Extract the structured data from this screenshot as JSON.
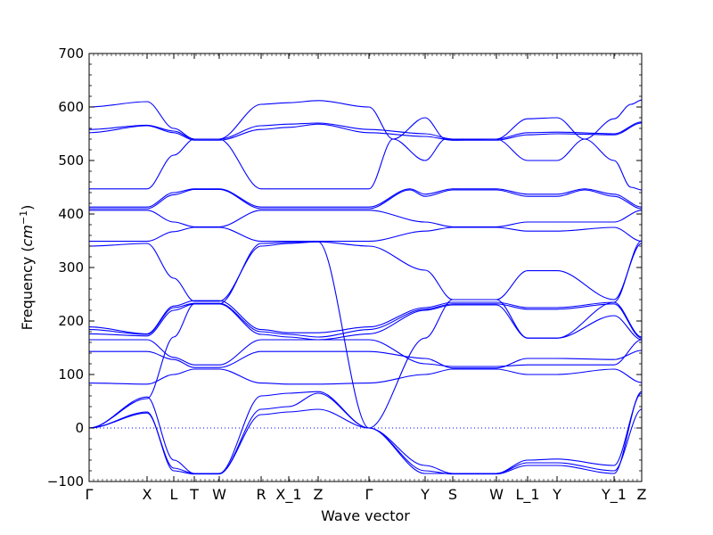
{
  "chart_data": {
    "type": "line",
    "title": "",
    "xlabel": "Wave vector",
    "ylabel": "Frequency (cm⁻¹)",
    "ylabel_main": "Frequency (",
    "ylabel_unit": "cm",
    "ylabel_exp": "−1",
    "ylabel_close": ")",
    "ylim": [
      -100,
      700
    ],
    "xlim": [
      0,
      620
    ],
    "grid": false,
    "legend": "none",
    "zero_line": {
      "y": 0,
      "style": "dotted",
      "color": "#0000ff"
    },
    "yticks": [
      -100,
      0,
      100,
      200,
      300,
      400,
      500,
      600,
      700
    ],
    "ytick_labels": [
      "−100",
      "0",
      "100",
      "200",
      "300",
      "400",
      "500",
      "600",
      "700"
    ],
    "xticks": [
      {
        "label": "Γ",
        "x": 0
      },
      {
        "label": "X",
        "x": 65
      },
      {
        "label": "L",
        "x": 95
      },
      {
        "label": "T",
        "x": 118
      },
      {
        "label": "W",
        "x": 146
      },
      {
        "label": "R",
        "x": 193
      },
      {
        "label": "X_1",
        "x": 224
      },
      {
        "label": "Z",
        "x": 257
      },
      {
        "label": "Γ",
        "x": 314
      },
      {
        "label": "Y",
        "x": 377
      },
      {
        "label": "S",
        "x": 408
      },
      {
        "label": "W",
        "x": 457
      },
      {
        "label": "L_1",
        "x": 492
      },
      {
        "label": "Y",
        "x": 525
      },
      {
        "label": "Y_1",
        "x": 589
      },
      {
        "label": "Z",
        "x": 620
      }
    ],
    "line_color": "#0000ff",
    "series": [
      {
        "x": [
          0,
          65,
          95,
          118,
          146,
          193,
          224,
          257,
          314,
          341,
          377,
          400,
          408,
          457,
          492,
          525,
          556,
          589,
          608,
          620
        ],
        "y": [
          600,
          610,
          560,
          540,
          540,
          605,
          608,
          612,
          600,
          540,
          500,
          540,
          540,
          540,
          500,
          500,
          540,
          500,
          450,
          445
        ]
      },
      {
        "x": [
          0,
          65,
          95,
          118,
          146,
          193,
          224,
          257,
          314,
          377,
          408,
          457,
          492,
          525,
          589,
          620
        ],
        "y": [
          558,
          566,
          555,
          540,
          540,
          565,
          568,
          570,
          558,
          550,
          540,
          540,
          552,
          553,
          550,
          572
        ]
      },
      {
        "x": [
          0,
          65,
          95,
          118,
          146,
          193,
          224,
          257,
          314,
          377,
          408,
          457,
          492,
          525,
          589,
          620
        ],
        "y": [
          552,
          565,
          552,
          538,
          538,
          558,
          562,
          568,
          552,
          545,
          538,
          538,
          548,
          550,
          548,
          570
        ]
      },
      {
        "x": [
          0,
          65,
          95,
          118,
          146,
          193,
          224,
          257,
          314,
          341,
          377,
          400,
          408,
          457,
          492,
          525,
          556,
          589,
          608,
          620
        ],
        "y": [
          447,
          447,
          510,
          540,
          540,
          447,
          447,
          447,
          447,
          540,
          580,
          540,
          538,
          540,
          578,
          580,
          540,
          578,
          605,
          613
        ]
      },
      {
        "x": [
          0,
          65,
          95,
          118,
          146,
          193,
          224,
          257,
          314,
          360,
          377,
          408,
          457,
          492,
          525,
          556,
          589,
          620
        ],
        "y": [
          413,
          413,
          440,
          447,
          447,
          413,
          413,
          413,
          413,
          447,
          437,
          447,
          447,
          437,
          437,
          447,
          437,
          413
        ]
      },
      {
        "x": [
          0,
          65,
          95,
          118,
          146,
          193,
          224,
          257,
          314,
          360,
          377,
          408,
          457,
          492,
          525,
          556,
          589,
          620
        ],
        "y": [
          410,
          410,
          436,
          446,
          446,
          410,
          410,
          410,
          410,
          445,
          433,
          445,
          445,
          433,
          433,
          445,
          433,
          410
        ]
      },
      {
        "x": [
          0,
          65,
          95,
          118,
          146,
          193,
          224,
          257,
          314,
          377,
          408,
          457,
          492,
          525,
          589,
          620
        ],
        "y": [
          407,
          407,
          385,
          376,
          376,
          407,
          407,
          407,
          407,
          385,
          376,
          376,
          385,
          385,
          385,
          407
        ]
      },
      {
        "x": [
          0,
          65,
          95,
          118,
          146,
          193,
          224,
          257,
          314,
          377,
          408,
          457,
          492,
          525,
          589,
          620
        ],
        "y": [
          349,
          349,
          367,
          375,
          375,
          349,
          349,
          349,
          349,
          368,
          375,
          375,
          368,
          368,
          375,
          349
        ]
      },
      {
        "x": [
          0,
          65,
          95,
          118,
          146,
          193,
          224,
          257,
          314,
          377,
          408,
          457,
          492,
          525,
          589,
          620
        ],
        "y": [
          340,
          345,
          280,
          237,
          237,
          340,
          345,
          348,
          340,
          295,
          240,
          240,
          294,
          294,
          240,
          345
        ]
      },
      {
        "x": [
          0,
          65,
          95,
          118,
          146,
          193,
          224,
          257,
          314,
          377,
          408,
          457,
          492,
          525,
          589,
          620
        ],
        "y": [
          189,
          176,
          228,
          238,
          238,
          184,
          178,
          178,
          189,
          225,
          235,
          235,
          225,
          225,
          235,
          170
        ]
      },
      {
        "x": [
          0,
          65,
          95,
          118,
          146,
          193,
          224,
          257,
          314,
          377,
          408,
          457,
          492,
          525,
          589,
          620
        ],
        "y": [
          184,
          175,
          225,
          233,
          233,
          180,
          175,
          170,
          184,
          222,
          232,
          232,
          222,
          222,
          232,
          168
        ]
      },
      {
        "x": [
          0,
          65,
          95,
          118,
          146,
          193,
          224,
          257,
          314,
          377,
          408,
          457,
          492,
          525,
          589,
          620
        ],
        "y": [
          176,
          172,
          220,
          232,
          232,
          175,
          170,
          165,
          176,
          220,
          230,
          230,
          168,
          168,
          210,
          165
        ]
      },
      {
        "x": [
          0,
          65,
          95,
          118,
          146,
          193,
          224,
          257,
          314,
          377,
          408,
          457,
          492,
          525,
          589,
          620
        ],
        "y": [
          165,
          165,
          132,
          118,
          118,
          165,
          165,
          165,
          165,
          120,
          115,
          115,
          118,
          118,
          118,
          165
        ]
      },
      {
        "x": [
          0,
          65,
          95,
          118,
          146,
          193,
          224,
          257,
          314,
          377,
          408,
          457,
          492,
          525,
          589,
          620
        ],
        "y": [
          143,
          143,
          128,
          113,
          113,
          143,
          143,
          143,
          143,
          130,
          112,
          112,
          130,
          130,
          128,
          145
        ]
      },
      {
        "x": [
          0,
          65,
          95,
          118,
          146,
          193,
          224,
          257,
          314,
          377,
          408,
          457,
          492,
          525,
          589,
          620
        ],
        "y": [
          84,
          82,
          100,
          110,
          110,
          84,
          82,
          82,
          84,
          100,
          110,
          110,
          100,
          100,
          110,
          85
        ]
      },
      {
        "x": [
          0,
          65,
          95,
          118,
          146,
          193,
          224,
          257,
          314,
          377,
          408,
          457,
          492,
          525,
          589,
          620
        ],
        "y": [
          0,
          58,
          -60,
          -85,
          -85,
          60,
          65,
          68,
          0,
          -70,
          -85,
          -85,
          -60,
          -58,
          -70,
          65
        ]
      },
      {
        "x": [
          0,
          65,
          95,
          118,
          146,
          193,
          224,
          257,
          314,
          377,
          408,
          457,
          492,
          525,
          589,
          620
        ],
        "y": [
          0,
          28,
          -75,
          -85,
          -85,
          25,
          30,
          35,
          0,
          -85,
          -85,
          -85,
          -65,
          -65,
          -80,
          35
        ]
      },
      {
        "x": [
          0,
          65,
          95,
          118,
          146,
          193,
          224,
          257,
          314,
          377,
          408,
          457,
          492,
          525,
          589,
          620
        ],
        "y": [
          0,
          30,
          -80,
          -86,
          -86,
          35,
          40,
          65,
          0,
          -80,
          -86,
          -86,
          -70,
          -70,
          -85,
          68
        ]
      },
      {
        "x": [
          0,
          65,
          95,
          118,
          146,
          193,
          224,
          257,
          314,
          377,
          408,
          457,
          492,
          525,
          589,
          620
        ],
        "y": [
          0,
          55,
          170,
          232,
          232,
          345,
          347,
          348,
          0,
          168,
          240,
          240,
          168,
          168,
          235,
          350
        ]
      }
    ]
  }
}
